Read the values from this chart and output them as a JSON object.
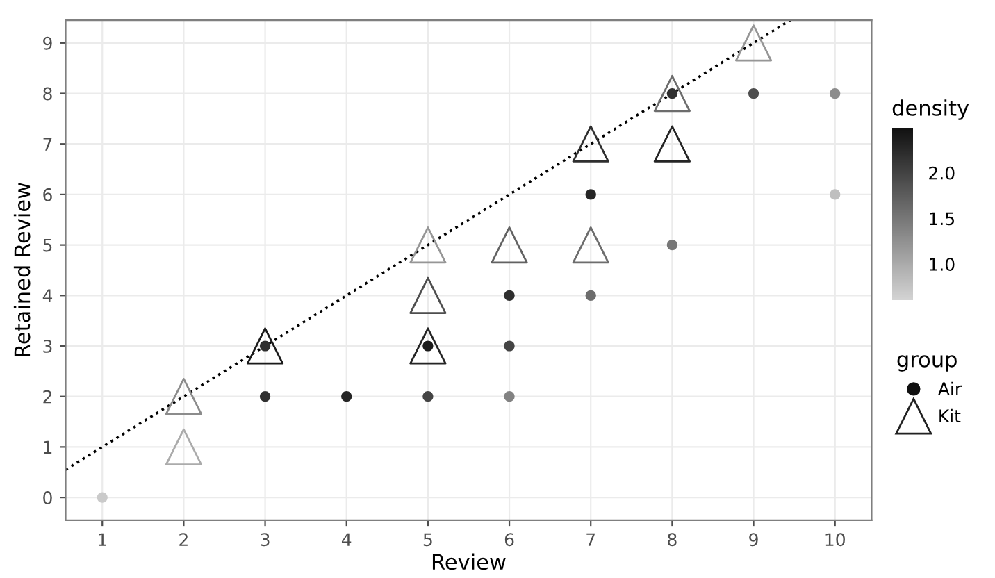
{
  "chart_data": {
    "type": "scatter",
    "xlabel": "Review",
    "ylabel": "Retained Review",
    "legend_title": "group",
    "clabel": "density",
    "xlim": [
      0.55,
      10.45
    ],
    "ylim": [
      -0.45,
      9.45
    ],
    "xticks": [
      1,
      2,
      3,
      4,
      5,
      6,
      7,
      8,
      9,
      10
    ],
    "yticks": [
      0,
      1,
      2,
      3,
      4,
      5,
      6,
      7,
      8,
      9
    ],
    "clim": [
      0.6,
      2.5
    ],
    "cticks": [
      {
        "value": 1,
        "label": "1.0"
      },
      {
        "value": 1.5,
        "label": "1.5"
      },
      {
        "value": 2,
        "label": "2.0"
      }
    ],
    "grid": true,
    "legend": "right",
    "series": [
      {
        "name": "Air",
        "marker": "circle",
        "x": [
          1,
          3,
          3,
          4,
          5,
          5,
          6,
          6,
          6,
          7,
          7,
          8,
          8,
          9,
          10,
          10
        ],
        "values": [
          0,
          3,
          2,
          2,
          3,
          2,
          4,
          3,
          2,
          6,
          4,
          8,
          5,
          8,
          8,
          6
        ],
        "colors": [
          "#cacaca",
          "#2f2f2f",
          "#2f2f2f",
          "#252525",
          "#1a1a1a",
          "#444444",
          "#2f2f2f",
          "#444444",
          "#828282",
          "#252525",
          "#6d6d6d",
          "#2f2f2f",
          "#777777",
          "#4e4e4e",
          "#8c8c8c",
          "#bfbfbf"
        ]
      },
      {
        "name": "Kit",
        "marker": "triangle",
        "x": [
          2,
          2,
          3,
          5,
          5,
          5,
          6,
          7,
          7,
          8,
          8,
          9
        ],
        "values": [
          2,
          1,
          3,
          5,
          4,
          3,
          5,
          7,
          5,
          8,
          7,
          9
        ],
        "colors": [
          "#8c8c8c",
          "#ababab",
          "#1a1a1a",
          "#969696",
          "#4e4e4e",
          "#252525",
          "#626262",
          "#2f2f2f",
          "#6d6d6d",
          "#6d6d6d",
          "#252525",
          "#969696"
        ]
      },
      {
        "type": "line",
        "line_style": "dotted",
        "color": "#000000",
        "x": [
          0.55,
          9.45
        ],
        "values": [
          0.55,
          9.45
        ]
      }
    ]
  }
}
